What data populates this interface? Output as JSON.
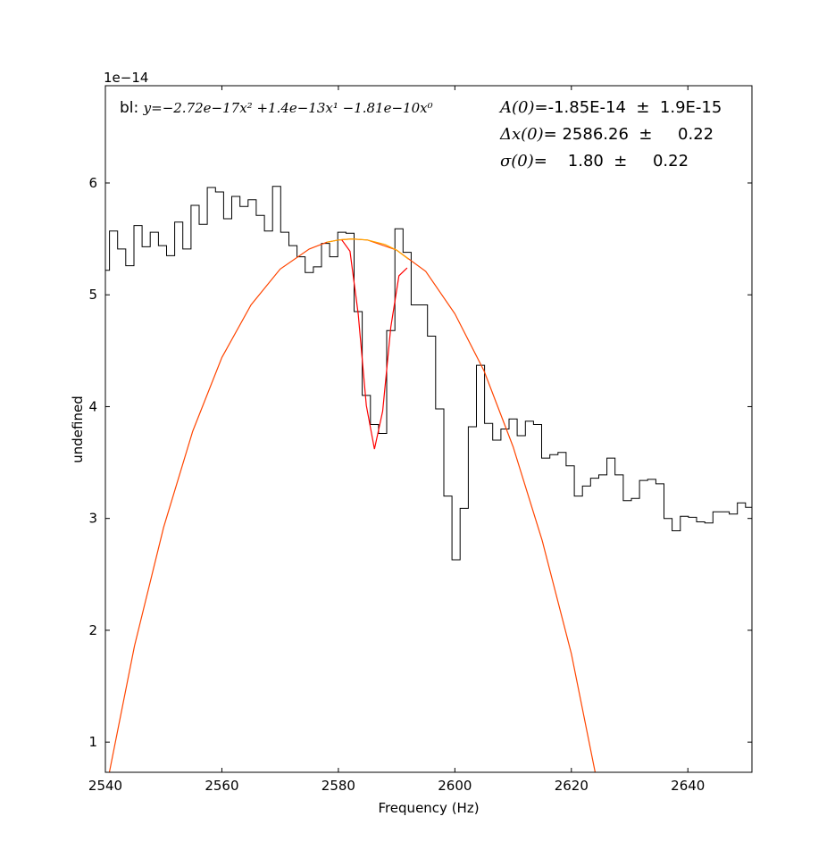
{
  "chart_data": {
    "type": "line",
    "title": "",
    "xlabel": "Frequency (Hz)",
    "ylabel": "undefined",
    "offset_label": "1e−14",
    "xlim": [
      2540,
      2651
    ],
    "ylim": [
      0.73,
      6.87
    ],
    "y_multiplier": 1e-14,
    "xticks": [
      2540,
      2560,
      2580,
      2600,
      2620,
      2640
    ],
    "yticks": [
      1,
      2,
      3,
      4,
      5,
      6
    ],
    "grid": false,
    "spectrum": {
      "style": "steps-mid",
      "color": "#000000",
      "x": [
        2540.0,
        2541.4,
        2542.8,
        2544.2,
        2545.6,
        2547.0,
        2548.4,
        2549.8,
        2551.2,
        2552.6,
        2554.0,
        2555.4,
        2556.8,
        2558.2,
        2559.6,
        2561.0,
        2562.4,
        2563.8,
        2565.2,
        2566.6,
        2568.0,
        2569.4,
        2570.8,
        2572.2,
        2573.6,
        2575.0,
        2576.4,
        2577.8,
        2579.2,
        2580.6,
        2582.0,
        2583.4,
        2584.8,
        2586.2,
        2587.6,
        2589.0,
        2590.4,
        2591.8,
        2593.2,
        2594.6,
        2596.0,
        2597.4,
        2598.8,
        2600.2,
        2601.6,
        2603.0,
        2604.4,
        2605.8,
        2607.2,
        2608.6,
        2610.0,
        2611.4,
        2612.8,
        2614.2,
        2615.6,
        2617.0,
        2618.4,
        2619.8,
        2621.2,
        2622.6,
        2624.0,
        2625.4,
        2626.8,
        2628.2,
        2629.6,
        2631.0,
        2632.4,
        2633.8,
        2635.2,
        2636.6,
        2638.0,
        2639.4,
        2640.8,
        2642.2,
        2643.6,
        2645.0,
        2646.4,
        2647.8,
        2649.2,
        2650.6
      ],
      "y": [
        5.22,
        5.57,
        5.41,
        5.26,
        5.62,
        5.43,
        5.56,
        5.44,
        5.35,
        5.65,
        5.41,
        5.8,
        5.63,
        5.96,
        5.92,
        5.68,
        5.88,
        5.79,
        5.85,
        5.71,
        5.57,
        5.97,
        5.56,
        5.44,
        5.34,
        5.2,
        5.25,
        5.46,
        5.34,
        5.56,
        5.55,
        4.85,
        4.1,
        3.84,
        3.76,
        4.68,
        5.59,
        5.38,
        4.91,
        4.91,
        4.63,
        3.98,
        3.2,
        2.63,
        3.09,
        3.82,
        4.37,
        3.85,
        3.7,
        3.8,
        3.89,
        3.74,
        3.87,
        3.84,
        3.54,
        3.57,
        3.59,
        3.47,
        3.2,
        3.29,
        3.36,
        3.39,
        3.54,
        3.39,
        3.16,
        3.18,
        3.34,
        3.35,
        3.31,
        3.0,
        2.89,
        3.02,
        3.01,
        2.97,
        2.96,
        3.06,
        3.06,
        3.04,
        3.14,
        3.1
      ]
    },
    "baseline": {
      "color": "#ff4500",
      "x": [
        2540.0,
        2545.0,
        2550.0,
        2555.0,
        2560.0,
        2565.0,
        2570.0,
        2575.0,
        2578.0,
        2580.0,
        2582.3,
        2585.0,
        2590.0,
        2595.0,
        2600.0,
        2605.0,
        2610.0,
        2615.0,
        2620.0,
        2624.5
      ],
      "y": [
        0.55,
        1.86,
        2.92,
        3.78,
        4.44,
        4.91,
        5.23,
        5.41,
        5.47,
        5.49,
        5.5,
        5.49,
        5.4,
        5.21,
        4.83,
        4.32,
        3.64,
        2.8,
        1.79,
        0.62
      ]
    },
    "highlight": {
      "color": "#ffa500",
      "x": [
        2578.0,
        2580.0,
        2582.3,
        2585.0,
        2588.0,
        2590.0,
        2592.0
      ],
      "y": [
        5.47,
        5.49,
        5.5,
        5.49,
        5.45,
        5.4,
        5.32
      ]
    },
    "model": {
      "color": "#ff0000",
      "x": [
        2580.6,
        2582.0,
        2583.4,
        2584.8,
        2586.2,
        2587.6,
        2589.0,
        2590.4,
        2591.8
      ],
      "y": [
        5.49,
        5.39,
        4.83,
        4.01,
        3.62,
        3.96,
        4.71,
        5.17,
        5.24
      ]
    },
    "annotations": {
      "baseline_label": "bl: ",
      "baseline_formula": "y=−2.72e−17x² +1.4e−13x¹ −1.81e−10x⁰",
      "fit_params": [
        {
          "symbol": "A(0)",
          "text": "=-1.85E-14  ±  1.9E-15"
        },
        {
          "symbol": "Δx(0)",
          "text": "= 2586.26  ±     0.22"
        },
        {
          "symbol": "σ(0)",
          "text": "=    1.80  ±     0.22"
        }
      ]
    }
  }
}
